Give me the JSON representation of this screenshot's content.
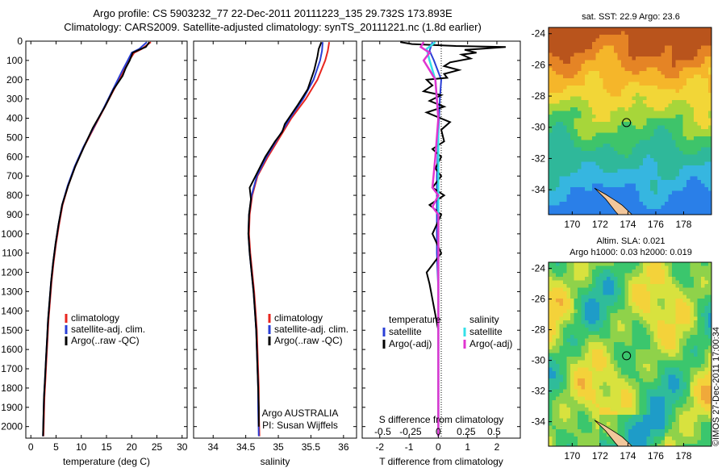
{
  "header": {
    "line1": "Argo profile: CS 5903232_77 22-Dec-2011 20111223_135 29.732S 173.893E",
    "line2": "Climatology: CARS2009. Satellite-adjusted climatology: synTS_20111221.nc (1.8d earlier)"
  },
  "colors": {
    "climatology": "#e8261f",
    "satellite": "#2a3fd6",
    "argo": "#000000",
    "salinity_sat": "#35e0e8",
    "salinity_argo": "#e035d0",
    "land": "#f2c79b"
  },
  "chart_data": [
    {
      "id": "temperature",
      "type": "line",
      "xlabel": "temperature (deg C)",
      "xlim": [
        -1,
        31
      ],
      "xticks": [
        0,
        5,
        10,
        15,
        20,
        25,
        30
      ],
      "ylim": [
        2060,
        0
      ],
      "yticks": [
        0,
        100,
        200,
        300,
        400,
        500,
        600,
        700,
        800,
        900,
        1000,
        1100,
        1200,
        1300,
        1400,
        1500,
        1600,
        1700,
        1800,
        1900,
        2000
      ],
      "legend": [
        "climatology",
        "satellite-adj. clim.",
        "Argo(..raw -QC)"
      ],
      "series": [
        {
          "name": "climatology",
          "color": "#e8261f",
          "points": [
            [
              23.8,
              5
            ],
            [
              22,
              40
            ],
            [
              20.5,
              60
            ],
            [
              19.5,
              100
            ],
            [
              18.5,
              150
            ],
            [
              16.5,
              250
            ],
            [
              14.5,
              350
            ],
            [
              12.5,
              450
            ],
            [
              10.5,
              550
            ],
            [
              8.8,
              650
            ],
            [
              7.4,
              750
            ],
            [
              6.3,
              850
            ],
            [
              5.6,
              950
            ],
            [
              5,
              1050
            ],
            [
              4.5,
              1150
            ],
            [
              4.1,
              1250
            ],
            [
              3.8,
              1350
            ],
            [
              3.5,
              1450
            ],
            [
              3.3,
              1550
            ],
            [
              3.1,
              1650
            ],
            [
              2.9,
              1750
            ],
            [
              2.7,
              1850
            ],
            [
              2.6,
              1950
            ],
            [
              2.5,
              2050
            ]
          ]
        },
        {
          "name": "satellite-adj. clim.",
          "color": "#2a3fd6",
          "points": [
            [
              23,
              5
            ],
            [
              21.5,
              40
            ],
            [
              20,
              60
            ],
            [
              19.2,
              100
            ],
            [
              18.2,
              150
            ],
            [
              16.3,
              250
            ],
            [
              14.4,
              350
            ],
            [
              12.4,
              450
            ],
            [
              10.4,
              550
            ],
            [
              8.7,
              650
            ],
            [
              7.3,
              750
            ],
            [
              6.2,
              850
            ],
            [
              5.5,
              950
            ],
            [
              4.9,
              1050
            ],
            [
              4.4,
              1150
            ],
            [
              4,
              1250
            ],
            [
              3.7,
              1350
            ],
            [
              3.4,
              1450
            ],
            [
              3.2,
              1550
            ],
            [
              3,
              1650
            ],
            [
              2.8,
              1750
            ],
            [
              2.6,
              1850
            ],
            [
              2.5,
              1950
            ],
            [
              2.4,
              2050
            ]
          ]
        },
        {
          "name": "Argo(..raw -QC)",
          "color": "#000000",
          "points": [
            [
              23.5,
              5
            ],
            [
              22.8,
              30
            ],
            [
              21.5,
              45
            ],
            [
              20.2,
              60
            ],
            [
              19.6,
              100
            ],
            [
              18.8,
              140
            ],
            [
              18.2,
              180
            ],
            [
              16.4,
              250
            ],
            [
              14.7,
              340
            ],
            [
              12.3,
              450
            ],
            [
              10.5,
              550
            ],
            [
              8.8,
              650
            ],
            [
              7.4,
              750
            ],
            [
              6.2,
              850
            ],
            [
              5.5,
              950
            ],
            [
              4.9,
              1050
            ],
            [
              4.4,
              1150
            ],
            [
              4,
              1250
            ],
            [
              3.7,
              1350
            ],
            [
              3.4,
              1450
            ],
            [
              3.2,
              1550
            ],
            [
              3,
              1650
            ],
            [
              2.8,
              1750
            ],
            [
              2.6,
              1850
            ],
            [
              2.5,
              1950
            ],
            [
              2.4,
              2050
            ]
          ]
        }
      ]
    },
    {
      "id": "salinity",
      "type": "line",
      "xlabel": "salinity",
      "xlim": [
        33.7,
        36.2
      ],
      "xticks": [
        34,
        34.5,
        35,
        35.5,
        36
      ],
      "ylim": [
        2060,
        0
      ],
      "legend": [
        "climatology",
        "satellite-adj. clim.",
        "Argo(..raw -QC)"
      ],
      "annotations": [
        "Argo AUSTRALIA",
        "PI: Susan Wijffels"
      ],
      "series": [
        {
          "name": "climatology",
          "color": "#e8261f",
          "points": [
            [
              35.78,
              5
            ],
            [
              35.76,
              50
            ],
            [
              35.72,
              100
            ],
            [
              35.6,
              200
            ],
            [
              35.42,
              300
            ],
            [
              35.2,
              400
            ],
            [
              35.02,
              500
            ],
            [
              34.84,
              600
            ],
            [
              34.68,
              700
            ],
            [
              34.6,
              800
            ],
            [
              34.56,
              900
            ],
            [
              34.55,
              1000
            ],
            [
              34.57,
              1100
            ],
            [
              34.6,
              1200
            ],
            [
              34.63,
              1300
            ],
            [
              34.65,
              1400
            ],
            [
              34.67,
              1500
            ],
            [
              34.68,
              1600
            ],
            [
              34.69,
              1700
            ],
            [
              34.7,
              1800
            ],
            [
              34.7,
              1900
            ],
            [
              34.71,
              2050
            ]
          ]
        },
        {
          "name": "satellite-adj. clim.",
          "color": "#2a3fd6",
          "points": [
            [
              35.68,
              5
            ],
            [
              35.67,
              50
            ],
            [
              35.64,
              100
            ],
            [
              35.54,
              200
            ],
            [
              35.38,
              300
            ],
            [
              35.18,
              400
            ],
            [
              35.0,
              500
            ],
            [
              34.82,
              600
            ],
            [
              34.67,
              700
            ],
            [
              34.59,
              800
            ],
            [
              34.55,
              900
            ],
            [
              34.54,
              1000
            ],
            [
              34.56,
              1100
            ],
            [
              34.59,
              1200
            ],
            [
              34.62,
              1300
            ],
            [
              34.64,
              1400
            ],
            [
              34.66,
              1500
            ],
            [
              34.67,
              1600
            ],
            [
              34.68,
              1700
            ],
            [
              34.69,
              1800
            ],
            [
              34.69,
              1900
            ],
            [
              34.7,
              2050
            ]
          ]
        },
        {
          "name": "Argo(..raw -QC)",
          "color": "#000000",
          "points": [
            [
              35.66,
              5
            ],
            [
              35.62,
              40
            ],
            [
              35.6,
              80
            ],
            [
              35.55,
              150
            ],
            [
              35.45,
              250
            ],
            [
              35.3,
              330
            ],
            [
              35.1,
              430
            ],
            [
              35.06,
              470
            ],
            [
              34.95,
              520
            ],
            [
              34.8,
              600
            ],
            [
              34.65,
              700
            ],
            [
              34.56,
              760
            ],
            [
              34.58,
              820
            ],
            [
              34.55,
              900
            ],
            [
              34.54,
              1000
            ],
            [
              34.56,
              1100
            ],
            [
              34.59,
              1200
            ],
            [
              34.62,
              1300
            ],
            [
              34.64,
              1400
            ],
            [
              34.66,
              1500
            ],
            [
              34.67,
              1600
            ],
            [
              34.68,
              1700
            ],
            [
              34.69,
              1800
            ],
            [
              34.7,
              1900
            ],
            [
              34.7,
              2000
            ]
          ]
        }
      ]
    },
    {
      "id": "difference",
      "type": "line",
      "xlabel": "T difference from climatology",
      "xlabel_top": "S difference from climatology",
      "xlim": [
        -2.6,
        2.8
      ],
      "xticks": [
        -2,
        -1,
        0,
        1,
        2
      ],
      "xticks_top": [
        "-0.5",
        "-0.25",
        "0",
        "0.25",
        "0.5"
      ],
      "ylim": [
        2060,
        0
      ],
      "legend_left": [
        "temperature",
        "satellite",
        "Argo(-adj)"
      ],
      "legend_right": [
        "salinity",
        "satellite",
        "Argo(-adj)"
      ],
      "series": [
        {
          "name": "T satellite",
          "color": "#2a3fd6",
          "points": [
            [
              -0.2,
              5
            ],
            [
              -0.3,
              50
            ],
            [
              -0.15,
              100
            ],
            [
              0.1,
              200
            ],
            [
              0.05,
              300
            ],
            [
              0.0,
              500
            ],
            [
              -0.05,
              700
            ],
            [
              -0.05,
              900
            ],
            [
              -0.05,
              1100
            ],
            [
              0.0,
              1300
            ],
            [
              0.0,
              1500
            ],
            [
              0.0,
              2050
            ]
          ]
        },
        {
          "name": "T Argo(-adj)",
          "color": "#000000",
          "points": [
            [
              -1.3,
              5
            ],
            [
              -0.9,
              15
            ],
            [
              0.6,
              25
            ],
            [
              2.3,
              30
            ],
            [
              1.4,
              40
            ],
            [
              0.9,
              45
            ],
            [
              1.3,
              60
            ],
            [
              0.8,
              70
            ],
            [
              1.1,
              90
            ],
            [
              0.4,
              110
            ],
            [
              0.2,
              130
            ],
            [
              0.7,
              150
            ],
            [
              0.2,
              170
            ],
            [
              0.3,
              190
            ],
            [
              -0.4,
              200
            ],
            [
              -0.2,
              230
            ],
            [
              -0.5,
              260
            ],
            [
              0.1,
              280
            ],
            [
              -0.3,
              310
            ],
            [
              0.2,
              340
            ],
            [
              -0.4,
              370
            ],
            [
              0.4,
              420
            ],
            [
              0.1,
              460
            ],
            [
              0.2,
              520
            ],
            [
              -0.2,
              560
            ],
            [
              0.1,
              600
            ],
            [
              -0.1,
              660
            ],
            [
              0.1,
              700
            ],
            [
              -0.2,
              760
            ],
            [
              0.2,
              800
            ],
            [
              -0.3,
              850
            ],
            [
              0.1,
              900
            ],
            [
              -0.2,
              1000
            ],
            [
              0.1,
              1100
            ],
            [
              -0.4,
              1200
            ],
            [
              -0.3,
              1260
            ],
            [
              -0.2,
              1340
            ],
            [
              -0.1,
              1420
            ],
            [
              0.0,
              1500
            ],
            [
              0.0,
              2050
            ]
          ]
        },
        {
          "name": "S satellite",
          "color": "#35e0e8",
          "points": [
            [
              -0.1,
              5
            ],
            [
              -0.4,
              40
            ],
            [
              -0.3,
              100
            ],
            [
              -0.1,
              200
            ],
            [
              0.0,
              400
            ],
            [
              0.0,
              700
            ],
            [
              0.0,
              1000
            ],
            [
              0.0,
              1500
            ],
            [
              0.0,
              2050
            ]
          ]
        },
        {
          "name": "S Argo(-adj)",
          "color": "#e035d0",
          "points": [
            [
              -0.5,
              5
            ],
            [
              -0.6,
              30
            ],
            [
              -0.3,
              60
            ],
            [
              -0.5,
              100
            ],
            [
              -0.3,
              150
            ],
            [
              -0.1,
              200
            ],
            [
              0.0,
              400
            ],
            [
              -0.1,
              600
            ],
            [
              -0.2,
              760
            ],
            [
              0.0,
              800
            ],
            [
              -0.2,
              860
            ],
            [
              0.0,
              900
            ],
            [
              0.0,
              2050
            ]
          ]
        }
      ]
    },
    {
      "id": "sst_map",
      "type": "heatmap",
      "title": "sat. SST: 22.9 Argo: 23.6",
      "xticks": [
        170,
        172,
        174,
        176,
        178
      ],
      "yticks": [
        -24,
        -26,
        -28,
        -30,
        -32,
        -34
      ],
      "xlim": [
        168.3,
        180
      ],
      "ylim": [
        -35.6,
        -23.6
      ],
      "marker": [
        173.9,
        -29.7
      ]
    },
    {
      "id": "sla_map",
      "type": "heatmap",
      "title": "Altim. SLA: 0.021",
      "subtitle": "Argo h1000: 0.03 h2000: 0.019",
      "xticks": [
        170,
        172,
        174,
        176,
        178
      ],
      "yticks": [
        -24,
        -26,
        -28,
        -30,
        -32,
        -34
      ],
      "xlim": [
        168.3,
        180
      ],
      "ylim": [
        -35.6,
        -23.6
      ],
      "marker": [
        173.9,
        -29.7
      ]
    }
  ],
  "credit": "©IMOS 27-Dec-2011 17:00:34"
}
